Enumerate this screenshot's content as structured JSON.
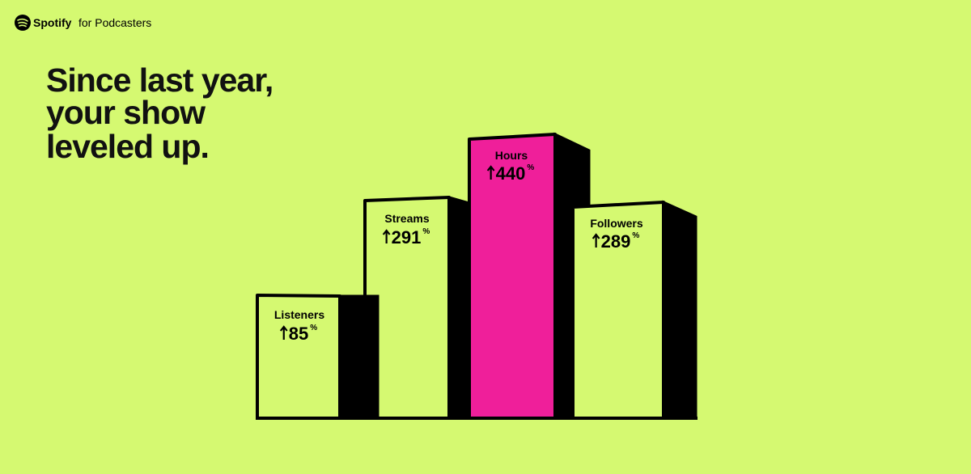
{
  "header": {
    "brand": "Spotify",
    "brand_suffix": "for Podcasters"
  },
  "headline": [
    "Since last year,",
    "your show",
    "leveled up."
  ],
  "metrics": [
    {
      "label": "Listeners",
      "value": 85,
      "unit": "%"
    },
    {
      "label": "Streams",
      "value": 291,
      "unit": "%"
    },
    {
      "label": "Hours",
      "value": 440,
      "unit": "%"
    },
    {
      "label": "Followers",
      "value": 289,
      "unit": "%"
    }
  ]
}
